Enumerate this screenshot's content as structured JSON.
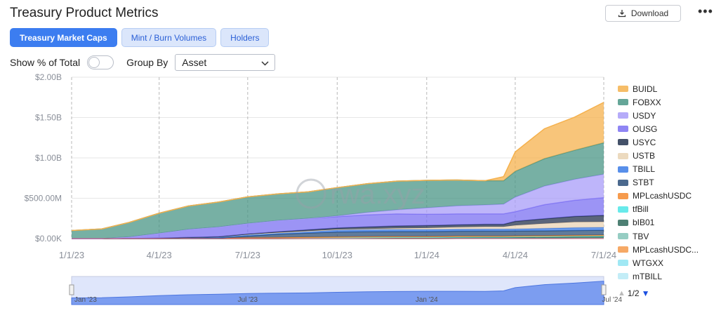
{
  "header": {
    "title": "Treasury Product Metrics",
    "download_label": "Download",
    "more_label": "•••"
  },
  "tabs": [
    {
      "label": "Treasury Market Caps",
      "active": true
    },
    {
      "label": "Mint / Burn Volumes",
      "active": false
    },
    {
      "label": "Holders",
      "active": false
    }
  ],
  "controls": {
    "show_pct_label": "Show % of Total",
    "show_pct_on": false,
    "group_by_label": "Group By",
    "group_by_value": "Asset"
  },
  "watermark": "rwa.xyz",
  "pager": {
    "text": "1/2"
  },
  "navigator": {
    "labels": [
      "Jan '23",
      "Jul '23",
      "Jan '24",
      "Jul '24"
    ]
  },
  "chart_data": {
    "type": "area",
    "stacked": true,
    "x": [
      "1/1/23",
      "2/1/23",
      "3/1/23",
      "4/1/23",
      "5/1/23",
      "6/1/23",
      "7/1/23",
      "8/1/23",
      "9/1/23",
      "10/1/23",
      "11/1/23",
      "12/1/23",
      "1/1/24",
      "2/1/24",
      "3/1/24",
      "3/20/24",
      "4/1/24",
      "5/1/24",
      "6/1/24",
      "7/1/24"
    ],
    "x_ticks": [
      "1/1/23",
      "4/1/23",
      "7/1/23",
      "10/1/23",
      "1/1/24",
      "4/1/24",
      "7/1/24"
    ],
    "y_ticks": [
      "$0.00K",
      "$500.00M",
      "$1.00B",
      "$1.50B",
      "$2.00B"
    ],
    "ylim": [
      0,
      2000000000
    ],
    "grid": true,
    "legend_position": "right",
    "series": [
      {
        "name": "mTBILL",
        "color": "#b9eaf6",
        "values": [
          0,
          0,
          0,
          0,
          0,
          0,
          0,
          0,
          0,
          0,
          0,
          0,
          0,
          0,
          0,
          0,
          0,
          0,
          2000000,
          3000000
        ]
      },
      {
        "name": "WTGXX",
        "color": "#8fe4f2",
        "values": [
          0,
          0,
          0,
          0,
          0,
          0,
          0,
          0,
          0,
          0,
          0,
          0,
          0,
          2000000,
          3000000,
          3000000,
          3000000,
          3000000,
          3000000,
          3000000
        ]
      },
      {
        "name": "MPLcashUSDC...",
        "color": "#f59a4b",
        "values": [
          0,
          0,
          0,
          0,
          0,
          0,
          0,
          0,
          0,
          0,
          0,
          0,
          0,
          0,
          0,
          0,
          0,
          0,
          0,
          0
        ]
      },
      {
        "name": "TBV",
        "color": "#84c4b8",
        "values": [
          0,
          0,
          0,
          0,
          0,
          0,
          0,
          0,
          0,
          0,
          0,
          0,
          0,
          0,
          0,
          0,
          0,
          0,
          0,
          0
        ]
      },
      {
        "name": "bIB01",
        "color": "#2f6a5c",
        "values": [
          0,
          0,
          0,
          0,
          0,
          0,
          0,
          0,
          2000000,
          5000000,
          8000000,
          10000000,
          10000000,
          12000000,
          12000000,
          12000000,
          14000000,
          16000000,
          18000000,
          20000000
        ]
      },
      {
        "name": "tfBill",
        "color": "#4ee6e8",
        "values": [
          0,
          0,
          0,
          0,
          2000000,
          3000000,
          4000000,
          4000000,
          5000000,
          5000000,
          5000000,
          5000000,
          5000000,
          5000000,
          5000000,
          5000000,
          5000000,
          5000000,
          5000000,
          5000000
        ]
      },
      {
        "name": "MPLcashUSDC",
        "color": "#f48a2e",
        "values": [
          0,
          0,
          0,
          0,
          2000000,
          5000000,
          8000000,
          10000000,
          12000000,
          12000000,
          12000000,
          12000000,
          12000000,
          12000000,
          12000000,
          12000000,
          12000000,
          12000000,
          12000000,
          12000000
        ]
      },
      {
        "name": "STBT",
        "color": "#2b4f7a",
        "values": [
          0,
          0,
          0,
          0,
          0,
          0,
          20000000,
          40000000,
          50000000,
          60000000,
          60000000,
          60000000,
          60000000,
          60000000,
          60000000,
          60000000,
          60000000,
          60000000,
          60000000,
          60000000
        ]
      },
      {
        "name": "TBILL",
        "color": "#3b7be6",
        "values": [
          0,
          0,
          0,
          5000000,
          10000000,
          15000000,
          20000000,
          20000000,
          25000000,
          25000000,
          25000000,
          25000000,
          25000000,
          25000000,
          25000000,
          25000000,
          25000000,
          30000000,
          35000000,
          35000000
        ]
      },
      {
        "name": "USTB",
        "color": "#e9d3b4",
        "values": [
          0,
          0,
          0,
          0,
          0,
          0,
          0,
          0,
          0,
          5000000,
          10000000,
          15000000,
          20000000,
          25000000,
          30000000,
          30000000,
          45000000,
          60000000,
          70000000,
          70000000
        ]
      },
      {
        "name": "USYC",
        "color": "#23324f",
        "values": [
          0,
          0,
          0,
          0,
          0,
          0,
          5000000,
          10000000,
          15000000,
          20000000,
          25000000,
          30000000,
          30000000,
          30000000,
          30000000,
          30000000,
          50000000,
          60000000,
          70000000,
          80000000
        ]
      },
      {
        "name": "OUSG",
        "color": "#7b70f2",
        "values": [
          0,
          0,
          20000000,
          60000000,
          100000000,
          120000000,
          130000000,
          140000000,
          140000000,
          140000000,
          150000000,
          150000000,
          140000000,
          135000000,
          130000000,
          130000000,
          120000000,
          175000000,
          200000000,
          220000000
        ]
      },
      {
        "name": "USDY",
        "color": "#a89cf8",
        "values": [
          0,
          0,
          0,
          0,
          0,
          0,
          0,
          0,
          0,
          10000000,
          30000000,
          50000000,
          80000000,
          100000000,
          110000000,
          120000000,
          180000000,
          230000000,
          260000000,
          290000000
        ]
      },
      {
        "name": "FOBXX",
        "color": "#4a9686",
        "values": [
          100000000,
          120000000,
          180000000,
          250000000,
          290000000,
          310000000,
          330000000,
          330000000,
          330000000,
          350000000,
          355000000,
          355000000,
          340000000,
          320000000,
          300000000,
          290000000,
          320000000,
          340000000,
          360000000,
          390000000
        ]
      },
      {
        "name": "BUIDL",
        "color": "#f5b14d",
        "values": [
          0,
          0,
          0,
          0,
          0,
          0,
          0,
          0,
          0,
          0,
          0,
          0,
          0,
          0,
          0,
          50000000,
          240000000,
          370000000,
          410000000,
          500000000
        ]
      }
    ],
    "legend_order": [
      "BUIDL",
      "FOBXX",
      "USDY",
      "OUSG",
      "USYC",
      "USTB",
      "TBILL",
      "STBT",
      "MPLcashUSDC",
      "tfBill",
      "bIB01",
      "TBV",
      "MPLcashUSDC...",
      "WTGXX",
      "mTBILL"
    ]
  }
}
